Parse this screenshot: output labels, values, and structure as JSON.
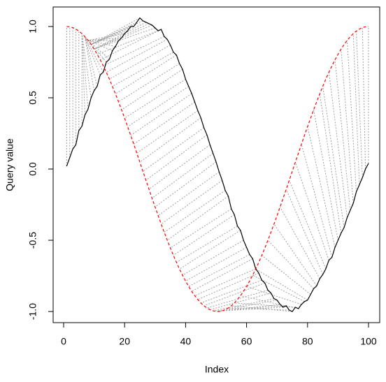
{
  "chart_data": {
    "type": "line",
    "xlabel": "Index",
    "ylabel": "Query value",
    "x": [
      1,
      2,
      3,
      4,
      5,
      6,
      7,
      8,
      9,
      10,
      11,
      12,
      13,
      14,
      15,
      16,
      17,
      18,
      19,
      20,
      21,
      22,
      23,
      24,
      25,
      26,
      27,
      28,
      29,
      30,
      31,
      32,
      33,
      34,
      35,
      36,
      37,
      38,
      39,
      40,
      41,
      42,
      43,
      44,
      45,
      46,
      47,
      48,
      49,
      50,
      51,
      52,
      53,
      54,
      55,
      56,
      57,
      58,
      59,
      60,
      61,
      62,
      63,
      64,
      65,
      66,
      67,
      68,
      69,
      70,
      71,
      72,
      73,
      74,
      75,
      76,
      77,
      78,
      79,
      80,
      81,
      82,
      83,
      84,
      85,
      86,
      87,
      88,
      89,
      90,
      91,
      92,
      93,
      94,
      95,
      96,
      97,
      98,
      99,
      100
    ],
    "series": [
      {
        "color": "#000000",
        "dash": false,
        "values": [
          0.02,
          0.08,
          0.14,
          0.17,
          0.27,
          0.3,
          0.38,
          0.42,
          0.5,
          0.55,
          0.58,
          0.66,
          0.68,
          0.75,
          0.77,
          0.83,
          0.86,
          0.9,
          0.92,
          0.95,
          0.97,
          1.0,
          1.0,
          1.03,
          1.06,
          1.04,
          1.03,
          1.02,
          1.01,
          0.99,
          0.97,
          0.98,
          0.93,
          0.91,
          0.87,
          0.82,
          0.8,
          0.74,
          0.7,
          0.63,
          0.58,
          0.53,
          0.47,
          0.41,
          0.36,
          0.29,
          0.24,
          0.17,
          0.11,
          0.05,
          -0.02,
          -0.08,
          -0.15,
          -0.19,
          -0.28,
          -0.32,
          -0.4,
          -0.43,
          -0.5,
          -0.55,
          -0.6,
          -0.63,
          -0.7,
          -0.73,
          -0.78,
          -0.8,
          -0.85,
          -0.87,
          -0.91,
          -0.92,
          -0.95,
          -0.97,
          -0.96,
          -0.99,
          -1.0,
          -0.97,
          -0.98,
          -0.95,
          -0.93,
          -0.92,
          -0.88,
          -0.84,
          -0.82,
          -0.77,
          -0.74,
          -0.7,
          -0.64,
          -0.62,
          -0.55,
          -0.5,
          -0.45,
          -0.41,
          -0.34,
          -0.29,
          -0.24,
          -0.16,
          -0.11,
          -0.06,
          0.0,
          0.04
        ]
      },
      {
        "color": "#ff0000",
        "dash": true,
        "values": [
          1,
          0.998,
          0.992,
          0.982,
          0.968,
          0.95,
          0.928,
          0.903,
          0.874,
          0.841,
          0.805,
          0.766,
          0.724,
          0.679,
          0.631,
          0.58,
          0.527,
          0.472,
          0.415,
          0.357,
          0.297,
          0.236,
          0.174,
          0.111,
          0.048,
          -0.016,
          -0.079,
          -0.142,
          -0.205,
          -0.266,
          -0.327,
          -0.386,
          -0.444,
          -0.5,
          -0.554,
          -0.606,
          -0.655,
          -0.702,
          -0.745,
          -0.786,
          -0.824,
          -0.858,
          -0.889,
          -0.916,
          -0.94,
          -0.96,
          -0.975,
          -0.987,
          -0.995,
          -0.999,
          -0.999,
          -0.995,
          -0.987,
          -0.975,
          -0.96,
          -0.94,
          -0.916,
          -0.889,
          -0.858,
          -0.824,
          -0.786,
          -0.745,
          -0.702,
          -0.655,
          -0.606,
          -0.554,
          -0.5,
          -0.444,
          -0.386,
          -0.327,
          -0.266,
          -0.205,
          -0.142,
          -0.079,
          -0.016,
          0.048,
          0.111,
          0.174,
          0.236,
          0.297,
          0.357,
          0.415,
          0.472,
          0.527,
          0.58,
          0.631,
          0.679,
          0.724,
          0.766,
          0.805,
          0.841,
          0.874,
          0.903,
          0.928,
          0.95,
          0.968,
          0.982,
          0.992,
          0.998,
          1
        ]
      }
    ],
    "matches": {
      "color": "#a0a0a0",
      "reference_index": [
        1,
        2,
        3,
        4,
        5,
        6,
        6,
        6,
        6,
        7,
        7,
        7,
        7,
        7,
        8,
        8,
        8,
        8,
        8,
        8,
        9,
        9,
        9,
        9,
        9,
        9,
        10,
        10,
        10,
        10,
        11,
        12,
        13,
        14,
        15,
        16,
        17,
        18,
        19,
        20,
        21,
        22,
        23,
        24,
        25,
        26,
        27,
        28,
        29,
        30,
        31,
        32,
        33,
        34,
        35,
        36,
        37,
        38,
        39,
        40,
        41,
        42,
        43,
        44,
        45,
        46,
        47,
        48,
        49,
        50,
        51,
        52,
        53,
        54,
        55,
        56,
        58,
        60,
        62,
        63,
        65,
        67,
        69,
        71,
        73,
        74,
        76,
        78,
        80,
        82,
        84,
        85,
        87,
        89,
        91,
        93,
        95,
        96,
        98,
        100
      ]
    },
    "xlim": [
      -3.44,
      103.67
    ],
    "ylim": [
      -1.078,
      1.137
    ],
    "xticks": [
      0,
      20,
      40,
      60,
      80,
      100
    ],
    "yticks": [
      {
        "value": -1,
        "label": "-1.0"
      },
      {
        "value": -0.5,
        "label": "-0.5"
      },
      {
        "value": 0,
        "label": "0.0"
      },
      {
        "value": 0.5,
        "label": "0.5"
      },
      {
        "value": 1,
        "label": "1.0"
      }
    ]
  }
}
